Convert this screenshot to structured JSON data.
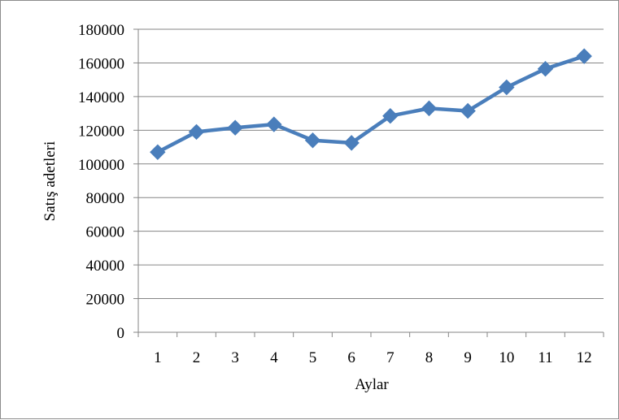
{
  "chart_data": {
    "type": "line",
    "title": "",
    "xlabel": "Aylar",
    "ylabel": "Satış  adetleri",
    "categories": [
      "1",
      "2",
      "3",
      "4",
      "5",
      "6",
      "7",
      "8",
      "9",
      "10",
      "11",
      "12"
    ],
    "series": [
      {
        "values": [
          107000,
          119000,
          121500,
          123500,
          114000,
          112500,
          128500,
          133000,
          131500,
          145500,
          156500,
          164000
        ]
      }
    ],
    "ylim": [
      0,
      180000
    ],
    "yticks": [
      "0",
      "20000",
      "40000",
      "60000",
      "80000",
      "100000",
      "120000",
      "140000",
      "160000",
      "180000"
    ],
    "grid": "horizontal",
    "legend": "none",
    "marker": "diamond",
    "colors": {
      "series": "#4a7ebb",
      "grid": "#868686",
      "axis": "#868686",
      "frame": "#8c8c8c"
    }
  }
}
